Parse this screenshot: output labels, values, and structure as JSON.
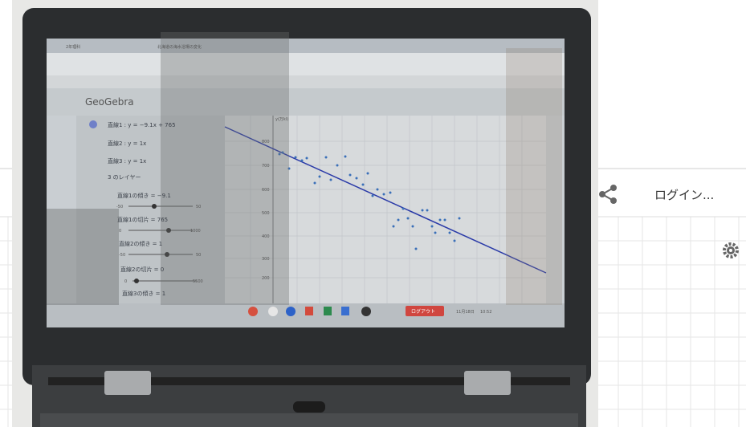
{
  "header": {
    "login": "ログイン..."
  },
  "screen": {
    "tabs": [
      "2年理科",
      "北海道の海水浴場の変化"
    ],
    "app_title": "GeoGebra",
    "algebra": [
      "直線1 : y = −9.1x + 765",
      "直線2 : y = 1x",
      "直線3 : y = 1x",
      "3 のレイヤー",
      "直線1の傾き = −9.1",
      "直線1の切片 = 765",
      "直線2の傾き = 1",
      "直線2の切片 = 0",
      "直線3の傾き = 1"
    ],
    "slider_ends": [
      [
        "-50",
        "50"
      ],
      [
        "0",
        "1000"
      ],
      [
        "-50",
        "50"
      ],
      [
        "0",
        "5500"
      ]
    ],
    "axis_label": "y(万kl)",
    "yticks": [
      "800",
      "700",
      "600",
      "500",
      "400",
      "300",
      "200"
    ],
    "logout": "ログアウト",
    "date": "11月18日",
    "time": "10:52"
  }
}
